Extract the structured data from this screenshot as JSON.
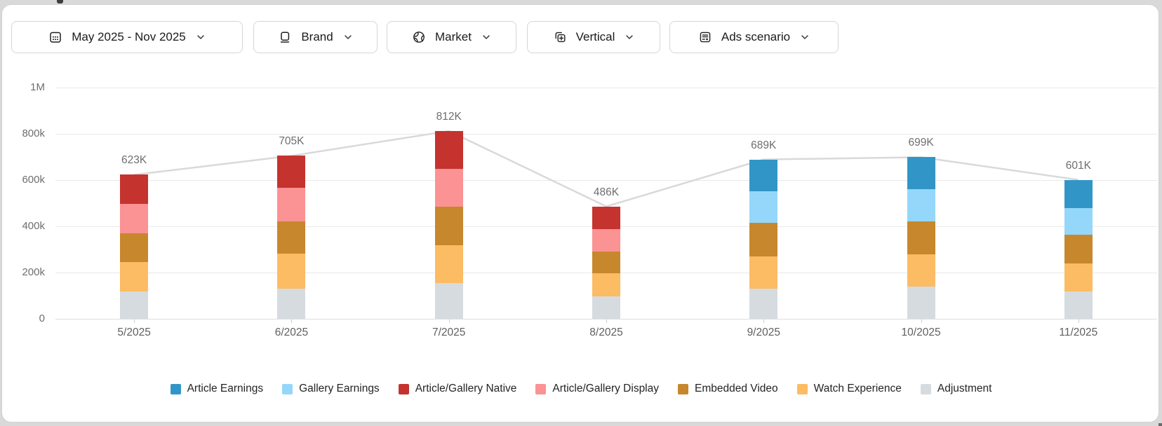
{
  "filters": [
    {
      "id": "date-range",
      "icon": "calendar-icon",
      "label": "May 2025 - Nov 2025"
    },
    {
      "id": "brand",
      "icon": "brand-icon",
      "label": "Brand"
    },
    {
      "id": "market",
      "icon": "globe-icon",
      "label": "Market"
    },
    {
      "id": "vertical",
      "icon": "vertical-icon",
      "label": "Vertical"
    },
    {
      "id": "ads-scenario",
      "icon": "ads-icon",
      "label": "Ads scenario"
    }
  ],
  "chart_data": {
    "type": "bar",
    "stacked": true,
    "categories": [
      "5/2025",
      "6/2025",
      "7/2025",
      "8/2025",
      "9/2025",
      "10/2025",
      "11/2025"
    ],
    "series": [
      {
        "name": "Adjustment",
        "color": "#d6dbe0",
        "values": [
          119,
          131,
          154,
          96,
          131,
          139,
          118
        ]
      },
      {
        "name": "Watch Experience",
        "color": "#fbbc63",
        "values": [
          125,
          150,
          164,
          101,
          139,
          140,
          121
        ]
      },
      {
        "name": "Embedded Video",
        "color": "#c7872c",
        "values": [
          127,
          139,
          166,
          94,
          145,
          142,
          124
        ]
      },
      {
        "name": "Article/Gallery Display",
        "color": "#fb9294",
        "values": [
          125,
          148,
          165,
          96,
          0,
          0,
          0
        ]
      },
      {
        "name": "Article/Gallery Native",
        "color": "#c5332e",
        "values": [
          127,
          137,
          163,
          99,
          0,
          0,
          0
        ]
      },
      {
        "name": "Gallery Earnings",
        "color": "#94d7fa",
        "values": [
          0,
          0,
          0,
          0,
          137,
          140,
          116
        ]
      },
      {
        "name": "Article Earnings",
        "color": "#3196c7",
        "values": [
          0,
          0,
          0,
          0,
          137,
          138,
          122
        ]
      }
    ],
    "totals": [
      623,
      705,
      812,
      486,
      689,
      699,
      601
    ],
    "total_labels": [
      "623K",
      "705K",
      "812K",
      "486K",
      "689K",
      "699K",
      "601K"
    ],
    "line_series": {
      "name": "Total",
      "color": "#d9d9d9"
    },
    "y_ticks": [
      "1M",
      "800k",
      "600k",
      "400k",
      "200k",
      "0"
    ],
    "y_tick_values": [
      1000,
      800,
      600,
      400,
      200,
      0
    ],
    "ylim": [
      0,
      1000
    ],
    "grid": true,
    "legend_position": "bottom",
    "legend_order": [
      "Article Earnings",
      "Gallery Earnings",
      "Article/Gallery Native",
      "Article/Gallery Display",
      "Embedded Video",
      "Watch Experience",
      "Adjustment"
    ]
  }
}
